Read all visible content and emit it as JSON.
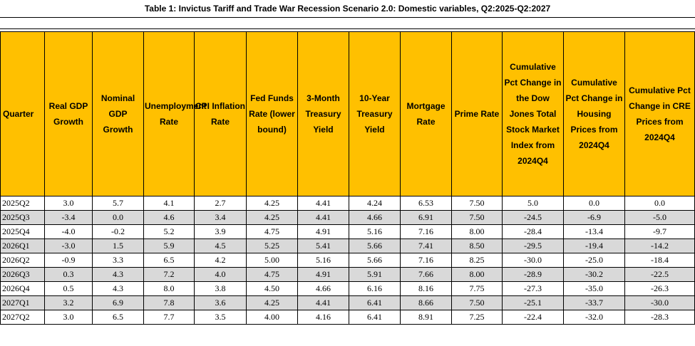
{
  "title": "Table 1:  Invictus Tariff and Trade War Recession Scenario 2.0:  Domestic variables, Q2:2025-Q2:2027",
  "colors": {
    "header_bg": "#FFC000",
    "alt_row_bg": "#D9D9D9"
  },
  "columns": [
    "Quarter",
    "Real GDP Growth",
    "Nominal GDP Growth",
    "Unemployment Rate",
    "CPI Inflation Rate",
    "Fed Funds Rate (lower bound)",
    "3-Month Treasury Yield",
    "10-Year Treasury Yield",
    "Mortgage Rate",
    "Prime Rate",
    "Cumulative Pct Change in the Dow Jones Total Stock Market Index from 2024Q4",
    "Cumulative Pct Change in Housing Prices from 2024Q4",
    "Cumulative Pct Change in CRE Prices from 2024Q4"
  ],
  "rows": [
    [
      "2025Q2",
      "3.0",
      "5.7",
      "4.1",
      "2.7",
      "4.25",
      "4.41",
      "4.24",
      "6.53",
      "7.50",
      "5.0",
      "0.0",
      "0.0"
    ],
    [
      "2025Q3",
      "-3.4",
      "0.0",
      "4.6",
      "3.4",
      "4.25",
      "4.41",
      "4.66",
      "6.91",
      "7.50",
      "-24.5",
      "-6.9",
      "-5.0"
    ],
    [
      "2025Q4",
      "-4.0",
      "-0.2",
      "5.2",
      "3.9",
      "4.75",
      "4.91",
      "5.16",
      "7.16",
      "8.00",
      "-28.4",
      "-13.4",
      "-9.7"
    ],
    [
      "2026Q1",
      "-3.0",
      "1.5",
      "5.9",
      "4.5",
      "5.25",
      "5.41",
      "5.66",
      "7.41",
      "8.50",
      "-29.5",
      "-19.4",
      "-14.2"
    ],
    [
      "2026Q2",
      "-0.9",
      "3.3",
      "6.5",
      "4.2",
      "5.00",
      "5.16",
      "5.66",
      "7.16",
      "8.25",
      "-30.0",
      "-25.0",
      "-18.4"
    ],
    [
      "2026Q3",
      "0.3",
      "4.3",
      "7.2",
      "4.0",
      "4.75",
      "4.91",
      "5.91",
      "7.66",
      "8.00",
      "-28.9",
      "-30.2",
      "-22.5"
    ],
    [
      "2026Q4",
      "0.5",
      "4.3",
      "8.0",
      "3.8",
      "4.50",
      "4.66",
      "6.16",
      "8.16",
      "7.75",
      "-27.3",
      "-35.0",
      "-26.3"
    ],
    [
      "2027Q1",
      "3.2",
      "6.9",
      "7.8",
      "3.6",
      "4.25",
      "4.41",
      "6.41",
      "8.66",
      "7.50",
      "-25.1",
      "-33.7",
      "-30.0"
    ],
    [
      "2027Q2",
      "3.0",
      "6.5",
      "7.7",
      "3.5",
      "4.00",
      "4.16",
      "6.41",
      "8.91",
      "7.25",
      "-22.4",
      "-32.0",
      "-28.3"
    ]
  ]
}
